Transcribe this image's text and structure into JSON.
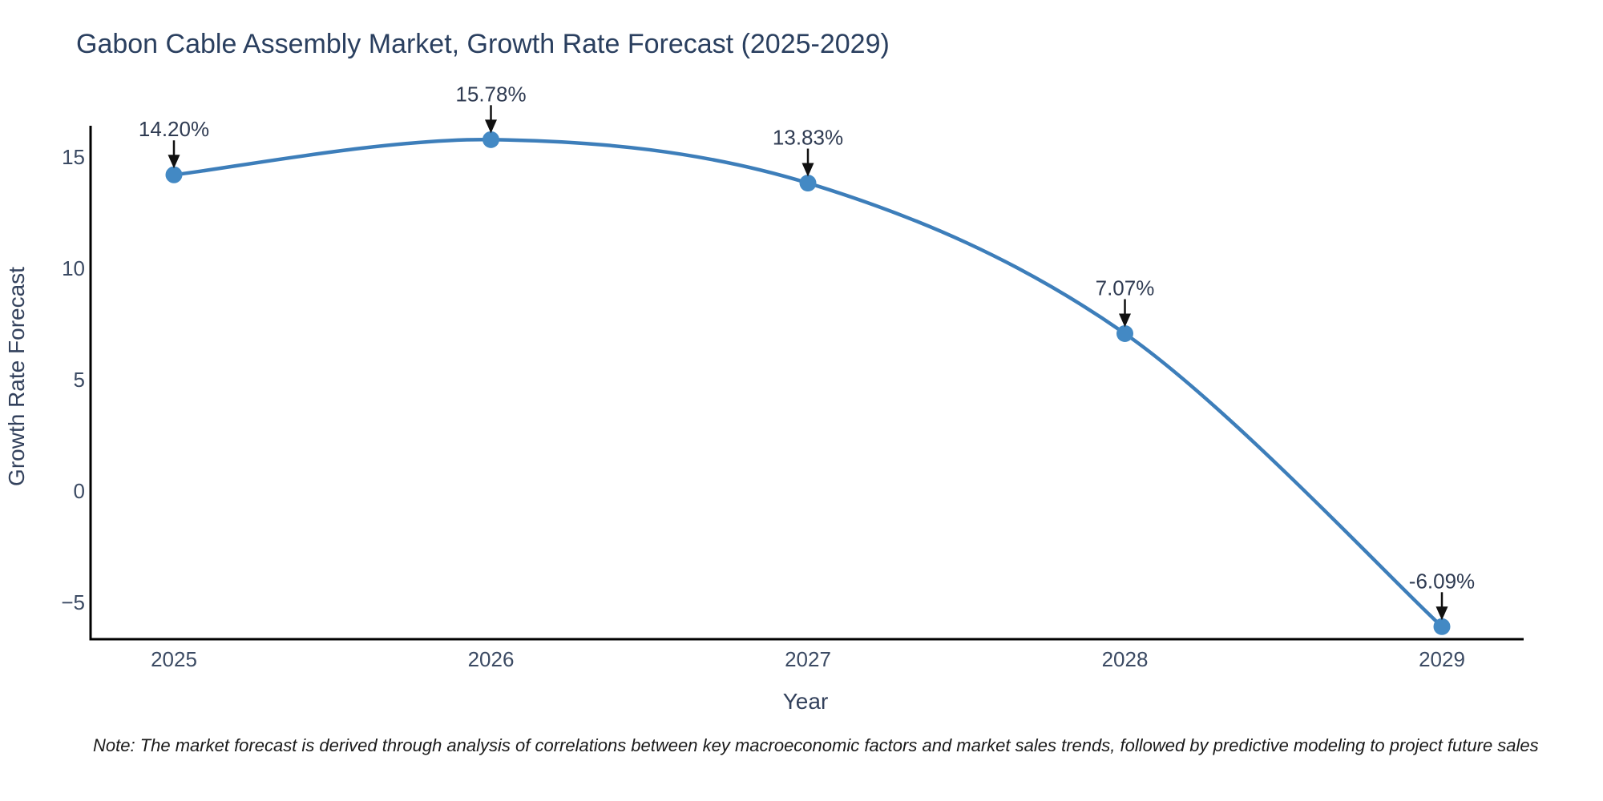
{
  "title": "Gabon Cable Assembly Market, Growth Rate Forecast (2025-2029)",
  "note": "Note: The market forecast is derived through analysis of correlations between key macroeconomic factors and market sales trends, followed by predictive modeling to project future sales",
  "chart_data": {
    "type": "line",
    "title": "Gabon Cable Assembly Market, Growth Rate Forecast (2025-2029)",
    "xlabel": "Year",
    "ylabel": "Growth Rate Forecast",
    "categories": [
      "2025",
      "2026",
      "2027",
      "2028",
      "2029"
    ],
    "series": [
      {
        "name": "Growth Rate Forecast",
        "values": [
          14.2,
          15.78,
          13.83,
          7.07,
          -6.09
        ],
        "point_labels": [
          "14.20%",
          "15.78%",
          "13.83%",
          "7.07%",
          "-6.09%"
        ]
      }
    ],
    "yticks": [
      15,
      10,
      5,
      0,
      -5
    ],
    "ytick_labels": [
      "15",
      "10",
      "5",
      "0",
      "−5"
    ],
    "ylim": [
      -6.65,
      16.4
    ],
    "grid": false,
    "legend_position": "none",
    "line_shape": "spline",
    "colors": {
      "line": "#3d7eba",
      "marker": "#4389c4",
      "axis": "#000000",
      "title_text": "#2a3f5f",
      "tick_text": "#3b4a63",
      "annotation_arrow": "#111111",
      "background": "#ffffff"
    }
  }
}
